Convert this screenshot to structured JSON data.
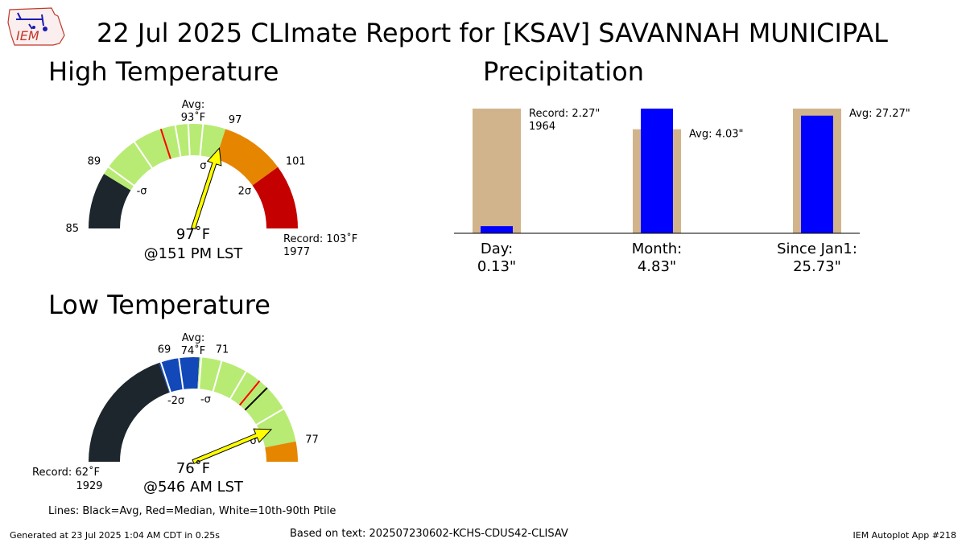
{
  "header": {
    "title": "22 Jul 2025 CLImate Report for [KSAV] SAVANNAH MUNICIPAL",
    "logo_text": "IEM"
  },
  "colors": {
    "dark": "#1c262c",
    "blue": "#1248b8",
    "green": "#b8eb73",
    "orange": "#e68600",
    "red": "#c40000",
    "median_line": "#ff0000",
    "needle": "#ffff00",
    "precip_actual": "#0000ff",
    "precip_reference": "#d2b48c"
  },
  "chart_data": [
    {
      "type": "gauge",
      "title": "High Temperature",
      "range": [
        85,
        105
      ],
      "bands": [
        {
          "from": 85,
          "to": 88.5,
          "color": "dark"
        },
        {
          "from": 88.5,
          "to": 97,
          "color": "green"
        },
        {
          "from": 97,
          "to": 101,
          "color": "orange"
        },
        {
          "from": 101,
          "to": 105,
          "color": "red"
        }
      ],
      "ptile_lines": [
        89,
        91.2,
        93.9,
        94.7,
        95.6
      ],
      "avg_line": null,
      "median_line": 93,
      "needle_value": 97,
      "tick_labels": [
        {
          "value": 85,
          "text": "85"
        },
        {
          "value": 89,
          "text": "89"
        },
        {
          "value": 97,
          "text": "97"
        },
        {
          "value": 101,
          "text": "101"
        }
      ],
      "sigma_labels": [
        {
          "value": 89,
          "text": "-σ"
        },
        {
          "value": 96,
          "text": "σ"
        },
        {
          "value": 101,
          "text": "2σ"
        }
      ],
      "avg_label": "Avg:",
      "avg_value": "93˚F",
      "observed": "97˚F",
      "time": "@151 PM LST",
      "record": "Record: 103˚F",
      "record_year": "1977"
    },
    {
      "type": "bar",
      "title": "Precipitation",
      "categories": [
        "Day:",
        "Month:",
        "Since Jan1:"
      ],
      "category_values": [
        "0.13\"",
        "4.83\"",
        "25.73\""
      ],
      "series": [
        {
          "role": "reference",
          "values": [
            2.27,
            4.03,
            27.27
          ],
          "labels": [
            "Record: 2.27\"",
            "Avg: 4.03\"",
            "Avg: 27.27\""
          ],
          "sublabels": [
            "1964",
            "",
            ""
          ]
        },
        {
          "role": "actual",
          "values": [
            0.13,
            4.83,
            25.73
          ]
        }
      ]
    },
    {
      "type": "gauge",
      "title": "Low Temperature",
      "range": [
        62,
        78
      ],
      "bands": [
        {
          "from": 62,
          "to": 68.3,
          "color": "dark"
        },
        {
          "from": 68.3,
          "to": 70.3,
          "color": "blue"
        },
        {
          "from": 70.3,
          "to": 77,
          "color": "green"
        },
        {
          "from": 77,
          "to": 78,
          "color": "orange"
        }
      ],
      "ptile_lines": [
        68.4,
        69.3,
        70.4,
        71.4,
        72.7,
        75.3
      ],
      "avg_line": 74,
      "median_line": 73.5,
      "needle_value": 76,
      "tick_labels": [
        {
          "value": 69,
          "text": "69"
        },
        {
          "value": 71,
          "text": "71"
        },
        {
          "value": 77,
          "text": "77"
        }
      ],
      "sigma_labels": [
        {
          "value": 68.6,
          "text": "-2σ"
        },
        {
          "value": 71,
          "text": "-σ"
        },
        {
          "value": 76.3,
          "text": "σ"
        }
      ],
      "avg_label": "Avg:",
      "avg_value": "74˚F",
      "observed": "76˚F",
      "time": "@546 AM LST",
      "record": "Record: 62˚F",
      "record_year": "1929"
    }
  ],
  "legend_note": "Lines: Black=Avg, Red=Median, White=10th-90th Ptile",
  "footer": {
    "generated": "Generated at 23 Jul 2025 1:04 AM CDT in 0.25s",
    "source": "Based on text: 202507230602-KCHS-CDUS42-CLISAV",
    "app": "IEM Autoplot App #218"
  }
}
